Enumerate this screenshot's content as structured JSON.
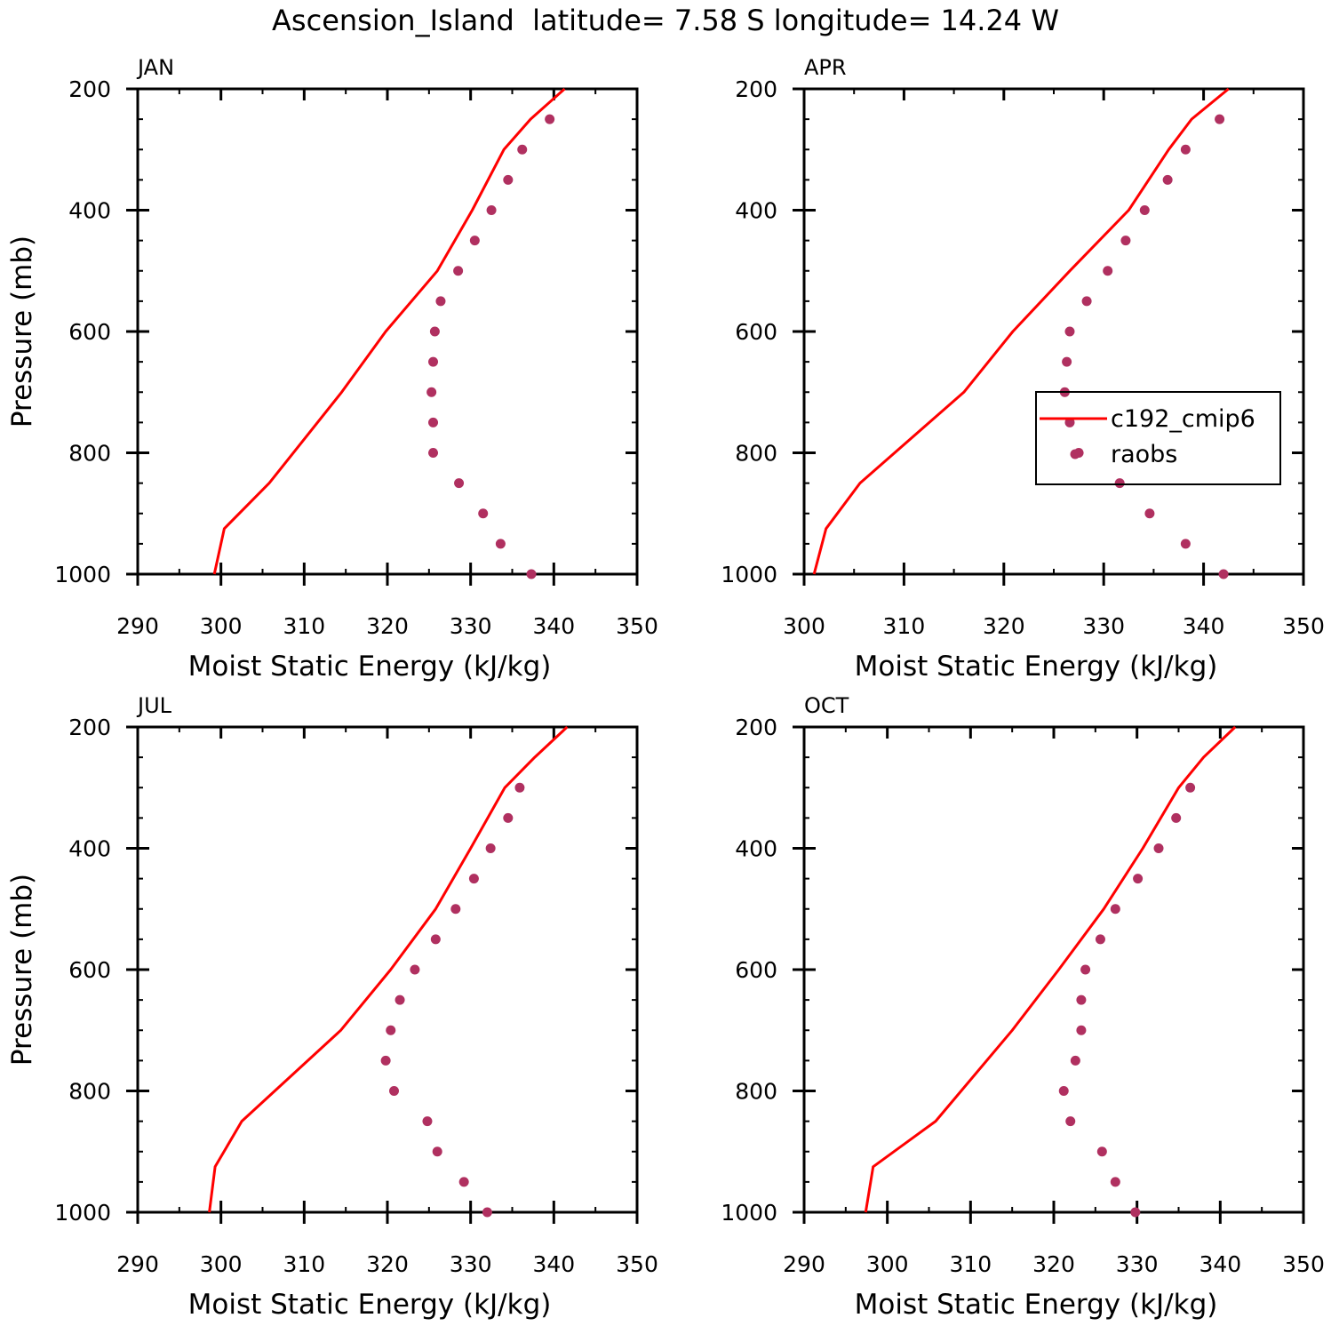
{
  "figure": {
    "title": "Ascension_Island  latitude= 7.58 S longitude= 14.24 W",
    "colors": {
      "model": "#ff0000",
      "obs": "#b03060",
      "axes": "#000000"
    }
  },
  "legend": {
    "panel": 1,
    "items": [
      {
        "label": "c192_cmip6",
        "style": "line",
        "color": "#ff0000"
      },
      {
        "label": "raobs",
        "style": "marker",
        "color": "#b03060"
      }
    ]
  },
  "chart_data": [
    {
      "type": "line",
      "panel_label": "JAN",
      "title": "JAN",
      "xlabel": "Moist Static Energy (kJ/kg)",
      "ylabel": "Pressure (mb)",
      "xlim": [
        290,
        350
      ],
      "xticks": [
        290,
        300,
        310,
        320,
        330,
        340,
        350
      ],
      "ylim": [
        1000,
        200
      ],
      "yticks": [
        200,
        400,
        600,
        800,
        1000
      ],
      "series": [
        {
          "name": "c192_cmip6",
          "style": "line",
          "color": "#ff0000",
          "points": [
            [
              299.2,
              1000
            ],
            [
              300.4,
              925
            ],
            [
              305.8,
              850
            ],
            [
              314.5,
              700
            ],
            [
              319.8,
              600
            ],
            [
              326.0,
              500
            ],
            [
              330.2,
              400
            ],
            [
              334.0,
              300
            ],
            [
              337.2,
              250
            ],
            [
              341.3,
              200
            ]
          ]
        },
        {
          "name": "raobs",
          "style": "marker",
          "color": "#b03060",
          "points": [
            [
              337.3,
              1000
            ],
            [
              333.6,
              950
            ],
            [
              331.5,
              900
            ],
            [
              328.6,
              850
            ],
            [
              325.5,
              800
            ],
            [
              325.5,
              750
            ],
            [
              325.3,
              700
            ],
            [
              325.5,
              650
            ],
            [
              325.7,
              600
            ],
            [
              326.4,
              550
            ],
            [
              328.5,
              500
            ],
            [
              330.5,
              450
            ],
            [
              332.5,
              400
            ],
            [
              334.5,
              350
            ],
            [
              336.2,
              300
            ],
            [
              339.5,
              250
            ]
          ]
        }
      ]
    },
    {
      "type": "line",
      "panel_label": "APR",
      "title": "APR",
      "xlabel": "Moist Static Energy (kJ/kg)",
      "ylabel": "",
      "xlim": [
        300,
        350
      ],
      "xticks": [
        300,
        310,
        320,
        330,
        340,
        350
      ],
      "ylim": [
        1000,
        200
      ],
      "yticks": [
        200,
        400,
        600,
        800,
        1000
      ],
      "series": [
        {
          "name": "c192_cmip6",
          "style": "line",
          "color": "#ff0000",
          "points": [
            [
              301.0,
              1000
            ],
            [
              302.2,
              925
            ],
            [
              305.6,
              850
            ],
            [
              316.0,
              700
            ],
            [
              320.9,
              600
            ],
            [
              326.6,
              500
            ],
            [
              332.5,
              400
            ],
            [
              336.5,
              300
            ],
            [
              338.8,
              250
            ],
            [
              342.5,
              200
            ]
          ]
        },
        {
          "name": "raobs",
          "style": "marker",
          "color": "#b03060",
          "points": [
            [
              342.0,
              1000
            ],
            [
              338.2,
              950
            ],
            [
              334.6,
              900
            ],
            [
              331.6,
              850
            ],
            [
              327.5,
              800
            ],
            [
              326.6,
              750
            ],
            [
              326.1,
              700
            ],
            [
              326.3,
              650
            ],
            [
              326.6,
              600
            ],
            [
              328.3,
              550
            ],
            [
              330.4,
              500
            ],
            [
              332.2,
              450
            ],
            [
              334.1,
              400
            ],
            [
              336.4,
              350
            ],
            [
              338.2,
              300
            ],
            [
              341.6,
              250
            ]
          ]
        }
      ]
    },
    {
      "type": "line",
      "panel_label": "JUL",
      "title": "JUL",
      "xlabel": "Moist Static Energy (kJ/kg)",
      "ylabel": "Pressure (mb)",
      "xlim": [
        290,
        350
      ],
      "xticks": [
        290,
        300,
        310,
        320,
        330,
        340,
        350
      ],
      "ylim": [
        1000,
        200
      ],
      "yticks": [
        200,
        400,
        600,
        800,
        1000
      ],
      "series": [
        {
          "name": "c192_cmip6",
          "style": "line",
          "color": "#ff0000",
          "points": [
            [
              298.6,
              1000
            ],
            [
              299.3,
              925
            ],
            [
              302.5,
              850
            ],
            [
              314.4,
              700
            ],
            [
              320.4,
              600
            ],
            [
              325.8,
              500
            ],
            [
              330.0,
              400
            ],
            [
              334.1,
              300
            ],
            [
              337.7,
              250
            ],
            [
              341.6,
              200
            ]
          ]
        },
        {
          "name": "raobs",
          "style": "marker",
          "color": "#b03060",
          "points": [
            [
              332.0,
              1000
            ],
            [
              329.2,
              950
            ],
            [
              326.0,
              900
            ],
            [
              324.8,
              850
            ],
            [
              320.8,
              800
            ],
            [
              319.8,
              750
            ],
            [
              320.4,
              700
            ],
            [
              321.5,
              650
            ],
            [
              323.3,
              600
            ],
            [
              325.8,
              550
            ],
            [
              328.2,
              500
            ],
            [
              330.4,
              450
            ],
            [
              332.4,
              400
            ],
            [
              334.5,
              350
            ],
            [
              335.9,
              300
            ]
          ]
        }
      ]
    },
    {
      "type": "line",
      "panel_label": "OCT",
      "title": "OCT",
      "xlabel": "Moist Static Energy (kJ/kg)",
      "ylabel": "",
      "xlim": [
        290,
        350
      ],
      "xticks": [
        290,
        300,
        310,
        320,
        330,
        340,
        350
      ],
      "ylim": [
        1000,
        200
      ],
      "yticks": [
        200,
        400,
        600,
        800,
        1000
      ],
      "series": [
        {
          "name": "c192_cmip6",
          "style": "line",
          "color": "#ff0000",
          "points": [
            [
              297.4,
              1000
            ],
            [
              298.3,
              925
            ],
            [
              305.8,
              850
            ],
            [
              315.0,
              700
            ],
            [
              320.6,
              600
            ],
            [
              326.0,
              500
            ],
            [
              330.7,
              400
            ],
            [
              335.0,
              300
            ],
            [
              338.0,
              250
            ],
            [
              341.8,
              200
            ]
          ]
        },
        {
          "name": "raobs",
          "style": "marker",
          "color": "#b03060",
          "points": [
            [
              329.8,
              1000
            ],
            [
              327.4,
              950
            ],
            [
              325.8,
              900
            ],
            [
              322.0,
              850
            ],
            [
              321.2,
              800
            ],
            [
              322.6,
              750
            ],
            [
              323.3,
              700
            ],
            [
              323.3,
              650
            ],
            [
              323.8,
              600
            ],
            [
              325.6,
              550
            ],
            [
              327.4,
              500
            ],
            [
              330.1,
              450
            ],
            [
              332.6,
              400
            ],
            [
              334.7,
              350
            ],
            [
              336.4,
              300
            ]
          ]
        }
      ]
    }
  ]
}
